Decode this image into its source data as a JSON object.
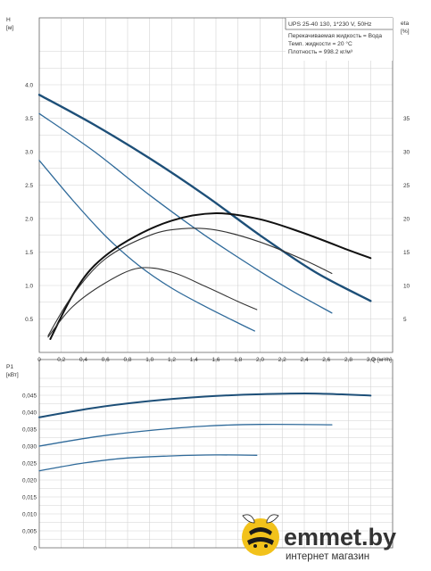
{
  "chart_data": [
    {
      "type": "line",
      "title": "",
      "xlabel": "Q [м³/h]",
      "xlim": [
        0,
        3.2
      ],
      "ylabel_left": "H [м]",
      "ylim_left": [
        0,
        4.6
      ],
      "ylabel_right": "eta [%]",
      "ylim_right": [
        0,
        46
      ],
      "x_ticks": [
        "0",
        "0,2",
        "0,4",
        "0,6",
        "0,8",
        "1,0",
        "1,2",
        "1,4",
        "1,6",
        "1,8",
        "2,0",
        "2,2",
        "2,4",
        "2,6",
        "2,8",
        "3,0"
      ],
      "y_ticks_left": [
        "0.5",
        "1.0",
        "1.5",
        "2.0",
        "2.5",
        "3.0",
        "3.5",
        "4.0"
      ],
      "y_ticks_right": [
        "5",
        "10",
        "15",
        "20",
        "25",
        "30",
        "35"
      ],
      "info_lines": [
        "UPS 25-40 130, 1*230 V, 50Hz",
        "Перекачиваемая жидкость = Вода",
        "Темп. жидкости = 20 °C",
        "Плотность = 998.2 кг/м³"
      ],
      "series": [
        {
          "axis": "left",
          "color": "#1d4f78",
          "width": 2.4,
          "x": [
            0,
            0.5,
            1.0,
            1.5,
            2.0,
            2.5,
            3.0
          ],
          "values": [
            3.85,
            3.4,
            2.9,
            2.35,
            1.75,
            1.2,
            0.77
          ]
        },
        {
          "axis": "left",
          "color": "#2f6a9a",
          "width": 1.3,
          "x": [
            0,
            0.5,
            1.0,
            1.5,
            2.0,
            2.3,
            2.65
          ],
          "values": [
            3.57,
            3.0,
            2.35,
            1.75,
            1.21,
            0.91,
            0.59
          ]
        },
        {
          "axis": "left",
          "color": "#2f6a9a",
          "width": 1.3,
          "x": [
            0,
            0.3,
            0.6,
            0.9,
            1.2,
            1.5,
            1.8,
            1.95
          ],
          "values": [
            2.87,
            2.28,
            1.74,
            1.3,
            0.96,
            0.69,
            0.44,
            0.32
          ]
        },
        {
          "axis": "right",
          "color": "#111111",
          "width": 2.0,
          "x": [
            0.1,
            0.3,
            0.5,
            0.8,
            1.2,
            1.6,
            2.0,
            2.4,
            2.8,
            3.0
          ],
          "values": [
            2,
            8.5,
            13,
            16.7,
            19.7,
            20.8,
            19.9,
            17.8,
            15.3,
            14.1
          ]
        },
        {
          "axis": "right",
          "color": "#333333",
          "width": 1.1,
          "x": [
            0.08,
            0.3,
            0.6,
            1.0,
            1.3,
            1.6,
            2.0,
            2.4,
            2.65
          ],
          "values": [
            2.5,
            8.5,
            14,
            17.5,
            18.5,
            18.3,
            16.5,
            13.8,
            11.8
          ]
        },
        {
          "axis": "right",
          "color": "#333333",
          "width": 1.1,
          "x": [
            0.08,
            0.3,
            0.6,
            0.9,
            1.2,
            1.5,
            1.8,
            1.97
          ],
          "values": [
            2.3,
            6.8,
            10.4,
            12.6,
            12,
            9.9,
            7.6,
            6.4
          ]
        }
      ]
    },
    {
      "type": "line",
      "title": "",
      "xlabel": "",
      "xlim": [
        0,
        3.2
      ],
      "ylabel": "P1 [кВт]",
      "ylim": [
        0,
        0.05
      ],
      "y_ticks": [
        "0",
        "0,005",
        "0,010",
        "0,015",
        "0,020",
        "0,025",
        "0,030",
        "0,035",
        "0,040",
        "0,045"
      ],
      "series": [
        {
          "color": "#1d4f78",
          "width": 2.0,
          "x": [
            0,
            0.5,
            1.0,
            1.5,
            2.0,
            2.5,
            3.0
          ],
          "values": [
            0.0385,
            0.0413,
            0.0433,
            0.0446,
            0.0453,
            0.0455,
            0.0449
          ]
        },
        {
          "color": "#2f6a9a",
          "width": 1.3,
          "x": [
            0,
            0.5,
            1.0,
            1.5,
            2.0,
            2.65
          ],
          "values": [
            0.03,
            0.0327,
            0.0346,
            0.0359,
            0.0364,
            0.0363
          ]
        },
        {
          "color": "#2f6a9a",
          "width": 1.3,
          "x": [
            0,
            0.4,
            0.8,
            1.2,
            1.6,
            1.97
          ],
          "values": [
            0.0227,
            0.025,
            0.0265,
            0.0271,
            0.0274,
            0.0273
          ]
        }
      ]
    }
  ],
  "logo": {
    "name": "emmet.by",
    "tagline": "интернет магазин"
  }
}
